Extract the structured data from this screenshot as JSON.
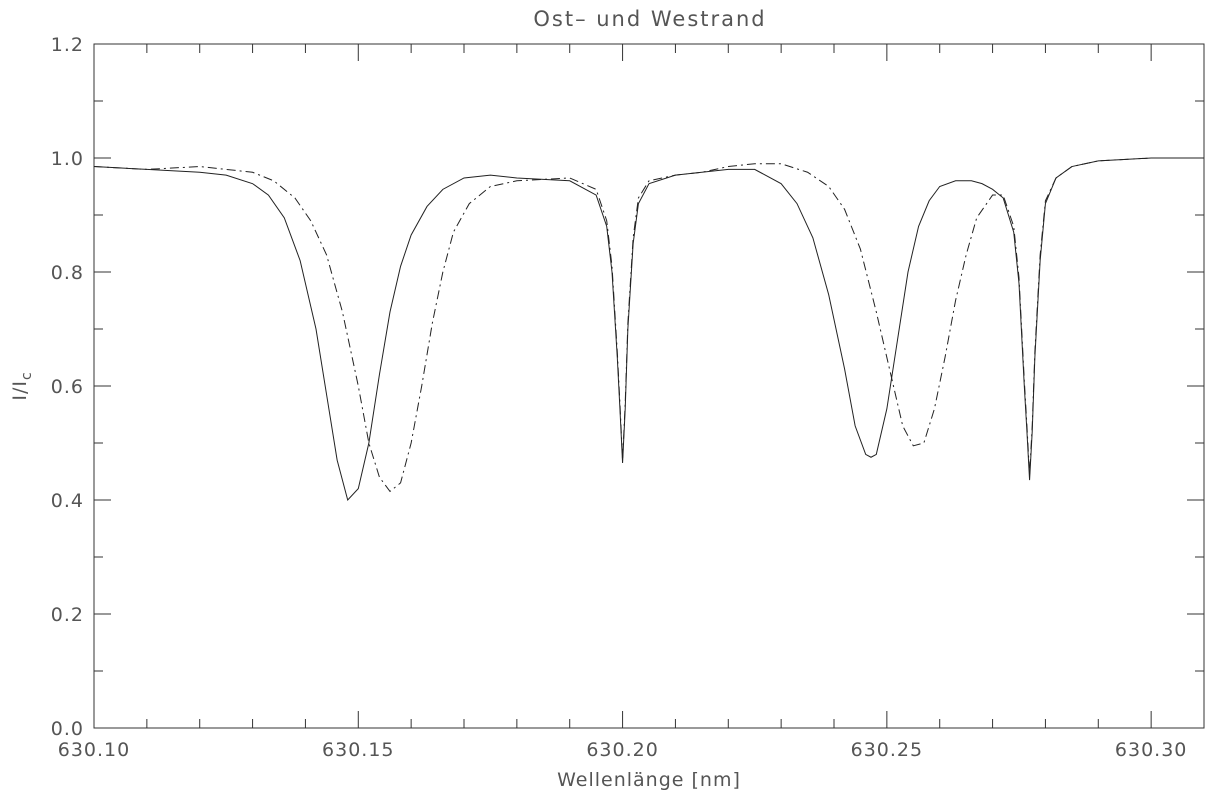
{
  "chart_data": {
    "type": "line",
    "title": "Ost– und Westrand",
    "xlabel": "Wellenlänge [nm]",
    "ylabel_main": "I/I",
    "ylabel_sub": "c",
    "xlim": [
      630.1,
      630.31
    ],
    "ylim": [
      0.0,
      1.2
    ],
    "x_ticks": [
      630.1,
      630.15,
      630.2,
      630.25,
      630.3
    ],
    "x_tick_labels": [
      "630.10",
      "630.15",
      "630.20",
      "630.25",
      "630.30"
    ],
    "y_ticks": [
      0.0,
      0.2,
      0.4,
      0.6,
      0.8,
      1.0,
      1.2
    ],
    "y_tick_labels": [
      "0.0",
      "0.2",
      "0.4",
      "0.6",
      "0.8",
      "1.0",
      "1.2"
    ],
    "x_minor_step": 0.01,
    "y_minor_step": 0.1,
    "grid": false,
    "series": [
      {
        "style": "solid",
        "x": [
          630.1,
          630.11,
          630.12,
          630.125,
          630.13,
          630.133,
          630.136,
          630.139,
          630.142,
          630.144,
          630.146,
          630.148,
          630.15,
          630.152,
          630.154,
          630.156,
          630.158,
          630.16,
          630.163,
          630.166,
          630.17,
          630.175,
          630.18,
          630.19,
          630.195,
          630.197,
          630.198,
          630.199,
          630.1995,
          630.2,
          630.2005,
          630.201,
          630.202,
          630.203,
          630.205,
          630.21,
          630.215,
          630.22,
          630.225,
          630.23,
          630.233,
          630.236,
          630.239,
          630.242,
          630.244,
          630.246,
          630.247,
          630.248,
          630.25,
          630.252,
          630.254,
          630.256,
          630.258,
          630.26,
          630.263,
          630.266,
          630.268,
          630.27,
          630.272,
          630.274,
          630.275,
          630.276,
          630.2765,
          630.277,
          630.2775,
          630.278,
          630.279,
          630.28,
          630.282,
          630.285,
          630.29,
          630.3,
          630.31
        ],
        "y": [
          0.985,
          0.98,
          0.975,
          0.97,
          0.955,
          0.935,
          0.895,
          0.82,
          0.7,
          0.585,
          0.47,
          0.4,
          0.42,
          0.5,
          0.62,
          0.73,
          0.81,
          0.865,
          0.915,
          0.945,
          0.965,
          0.97,
          0.965,
          0.96,
          0.935,
          0.88,
          0.8,
          0.65,
          0.56,
          0.465,
          0.56,
          0.7,
          0.85,
          0.92,
          0.955,
          0.97,
          0.975,
          0.98,
          0.98,
          0.955,
          0.92,
          0.86,
          0.76,
          0.63,
          0.53,
          0.48,
          0.475,
          0.48,
          0.56,
          0.68,
          0.8,
          0.88,
          0.925,
          0.95,
          0.96,
          0.96,
          0.955,
          0.945,
          0.93,
          0.87,
          0.78,
          0.6,
          0.52,
          0.435,
          0.52,
          0.65,
          0.82,
          0.92,
          0.965,
          0.985,
          0.995,
          1.0,
          1.0
        ]
      },
      {
        "style": "dash-dot",
        "x": [
          630.1,
          630.11,
          630.12,
          630.13,
          630.134,
          630.138,
          630.141,
          630.144,
          630.147,
          630.15,
          630.152,
          630.154,
          630.156,
          630.158,
          630.16,
          630.162,
          630.164,
          630.166,
          630.168,
          630.171,
          630.175,
          630.18,
          630.19,
          630.195,
          630.197,
          630.198,
          630.199,
          630.1995,
          630.2,
          630.2005,
          630.201,
          630.202,
          630.203,
          630.205,
          630.21,
          630.215,
          630.22,
          630.225,
          630.23,
          630.235,
          630.239,
          630.242,
          630.245,
          630.248,
          630.251,
          630.253,
          630.255,
          630.257,
          630.259,
          630.261,
          630.263,
          630.265,
          630.267,
          630.27,
          630.272,
          630.274,
          630.275,
          630.276,
          630.2765,
          630.277,
          630.2775,
          630.278,
          630.279,
          630.28,
          630.282,
          630.285,
          630.29,
          630.3,
          630.31
        ],
        "y": [
          0.985,
          0.98,
          0.985,
          0.975,
          0.96,
          0.93,
          0.89,
          0.83,
          0.73,
          0.6,
          0.5,
          0.44,
          0.415,
          0.43,
          0.5,
          0.6,
          0.71,
          0.8,
          0.87,
          0.92,
          0.95,
          0.96,
          0.965,
          0.945,
          0.89,
          0.81,
          0.66,
          0.57,
          0.47,
          0.57,
          0.71,
          0.86,
          0.93,
          0.96,
          0.97,
          0.975,
          0.985,
          0.99,
          0.99,
          0.975,
          0.95,
          0.91,
          0.84,
          0.73,
          0.61,
          0.53,
          0.495,
          0.5,
          0.56,
          0.65,
          0.75,
          0.83,
          0.895,
          0.935,
          0.935,
          0.88,
          0.79,
          0.61,
          0.53,
          0.445,
          0.53,
          0.66,
          0.83,
          0.925,
          0.965,
          0.985,
          0.995,
          1.0,
          1.0
        ]
      }
    ]
  }
}
